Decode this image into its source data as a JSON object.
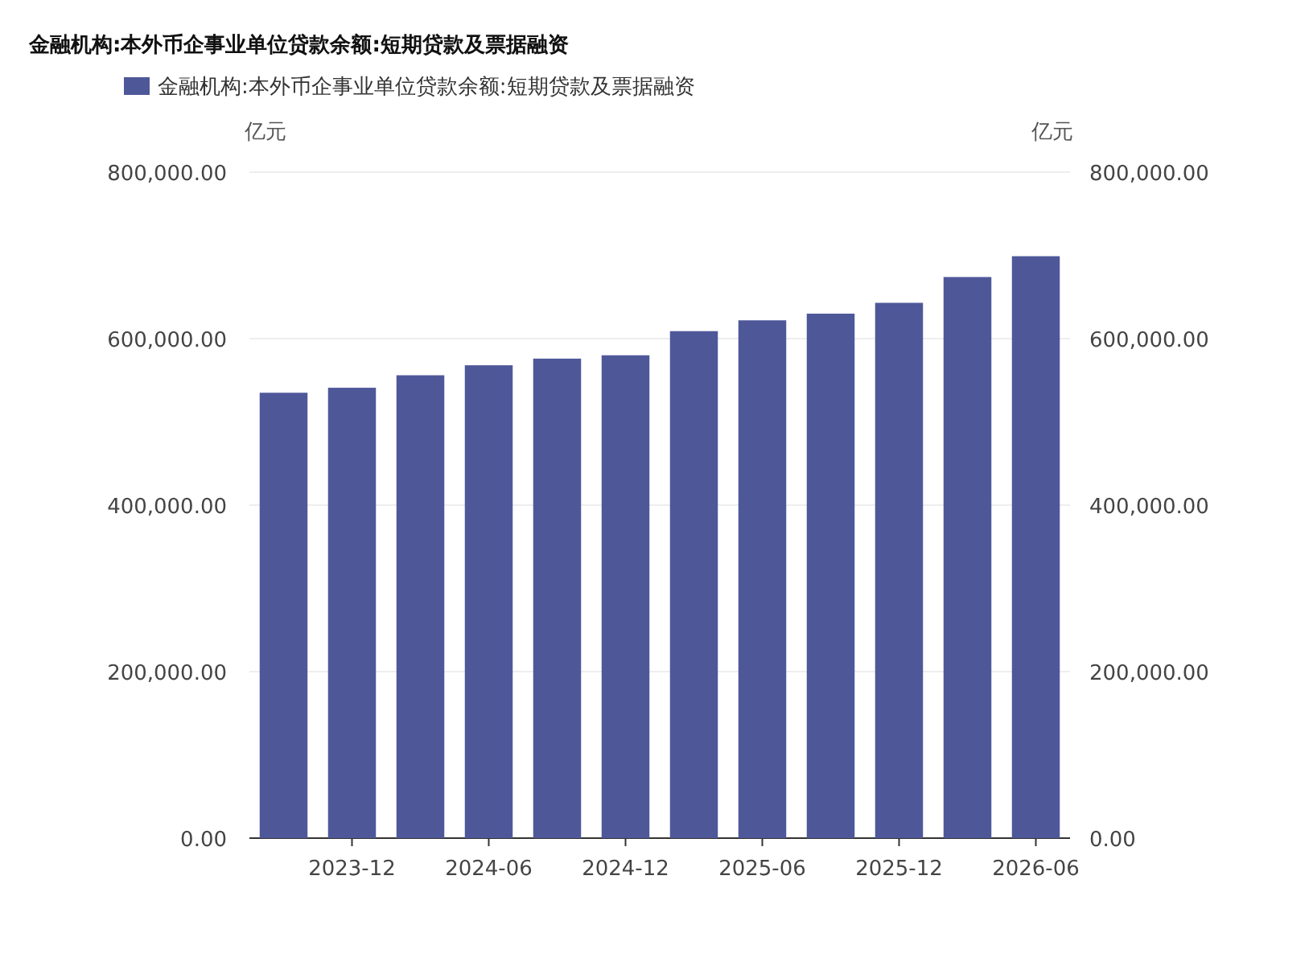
{
  "chart_data": {
    "type": "bar",
    "title": "金融机构:本外币企事业单位贷款余额:短期贷款及票据融资",
    "categories": [
      null,
      "2023-12",
      null,
      "2024-06",
      null,
      "2024-12",
      null,
      "2025-06",
      null,
      "2025-12",
      null,
      "2026-06"
    ],
    "series": [
      {
        "name": "金融机构:本外币企事业单位贷款余额:短期贷款及票据融资",
        "color": "#4e5899",
        "values": [
          535000,
          541000,
          556000,
          568000,
          576000,
          580000,
          609000,
          622000,
          630000,
          643000,
          674000,
          699000
        ]
      }
    ],
    "ylabel": "亿元",
    "y2label": "亿元",
    "ylim": [
      0,
      800000
    ],
    "yticks": [
      {
        "value": 0,
        "label": "0.00"
      },
      {
        "value": 200000,
        "label": "200,000.00"
      },
      {
        "value": 400000,
        "label": "400,000.00"
      },
      {
        "value": 600000,
        "label": "600,000.00"
      },
      {
        "value": 800000,
        "label": "800,000.00"
      }
    ],
    "y2lim": [
      0,
      800000
    ],
    "y2ticks": [
      {
        "value": 0,
        "label": "0.00"
      },
      {
        "value": 200000,
        "label": "200,000.00"
      },
      {
        "value": 400000,
        "label": "400,000.00"
      },
      {
        "value": 600000,
        "label": "600,000.00"
      },
      {
        "value": 800000,
        "label": "800,000.00"
      }
    ],
    "grid": "y",
    "legend": "top"
  }
}
